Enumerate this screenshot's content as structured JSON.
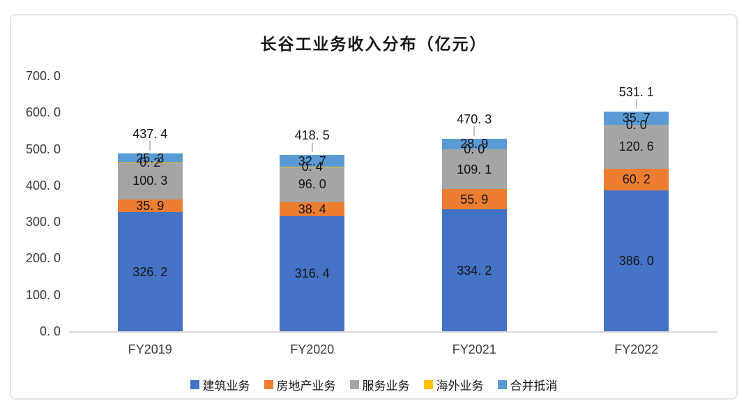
{
  "chart_data": {
    "type": "bar",
    "subtype": "stacked-column",
    "title": "长谷工业务收入分布（亿元）",
    "categories": [
      "FY2019",
      "FY2020",
      "FY2021",
      "FY2022"
    ],
    "series": [
      {
        "name": "建筑业务",
        "color": "#4472C4",
        "values": [
          326.2,
          316.4,
          334.2,
          386.0
        ]
      },
      {
        "name": "房地产业务",
        "color": "#ED7D31",
        "values": [
          35.9,
          38.4,
          55.9,
          60.2
        ]
      },
      {
        "name": "服务业务",
        "color": "#A5A5A5",
        "values": [
          100.3,
          96.0,
          109.1,
          120.6
        ]
      },
      {
        "name": "海外业务",
        "color": "#FFC000",
        "values": [
          0.2,
          0.4,
          0.0,
          0.0
        ]
      },
      {
        "name": "合并抵消",
        "color": "#5B9BD5",
        "values": [
          25.3,
          32.7,
          28.9,
          35.7
        ]
      }
    ],
    "totals": [
      437.4,
      418.5,
      470.3,
      531.1
    ],
    "yticks": [
      700,
      600,
      500,
      400,
      300,
      200,
      100,
      0
    ],
    "ylim": [
      0,
      700
    ],
    "grid": false,
    "legend_position": "bottom",
    "axis_line_color": "#d9d9d9",
    "leader_line_color": "#c6c6c6",
    "label_color": "#141414"
  }
}
